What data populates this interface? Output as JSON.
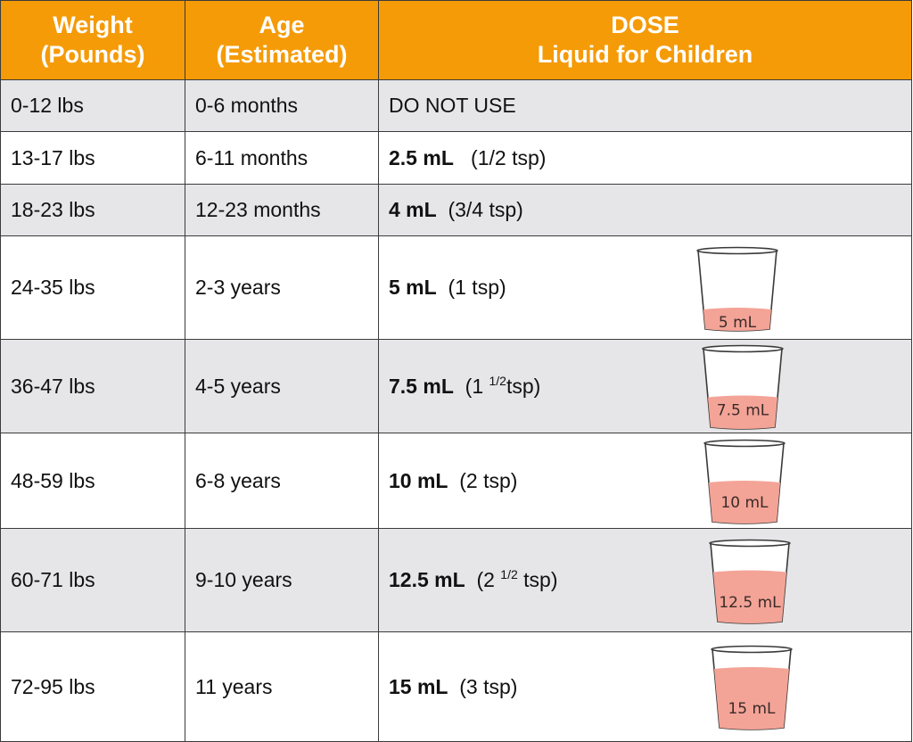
{
  "colors": {
    "header_bg": "#f59b07",
    "header_text": "#ffffff",
    "shaded_row": "#e6e6e8",
    "plain_row": "#ffffff",
    "liquid": "#f3a497"
  },
  "header": {
    "weight": {
      "line1": "Weight",
      "line2": "(Pounds)"
    },
    "age": {
      "line1": "Age",
      "line2": "(Estimated)"
    },
    "dose": {
      "line1": "DOSE",
      "line2": "Liquid for Children"
    }
  },
  "rows": [
    {
      "weight": "0-12 lbs",
      "age": "0-6 months",
      "dose_text": "DO NOT USE"
    },
    {
      "weight": "13-17 lbs",
      "age": "6-11 months",
      "dose_ml": "2.5 mL",
      "tsp_open": "(1/2 tsp)"
    },
    {
      "weight": "18-23 lbs",
      "age": "12-23 months",
      "dose_ml": "4 mL",
      "tsp_open": "(3/4 tsp)"
    },
    {
      "weight": "24-35 lbs",
      "age": "2-3 years",
      "dose_ml": "5 mL",
      "tsp_open": "(1 tsp)",
      "cup_label": "5 mL",
      "fill": 0.25
    },
    {
      "weight": "36-47 lbs",
      "age": "4-5 years",
      "dose_ml": "7.5 mL",
      "tsp_open": "(1",
      "tsp_frac": "1/2",
      "tsp_close": "tsp)",
      "cup_label": "7.5 mL",
      "fill": 0.38
    },
    {
      "weight": "48-59 lbs",
      "age": "6-8 years",
      "dose_ml": "10 mL",
      "tsp_open": "(2 tsp)",
      "cup_label": "10 mL",
      "fill": 0.5
    },
    {
      "weight": "60-71 lbs",
      "age": "9-10 years",
      "dose_ml": "12.5 mL",
      "tsp_open": "(2",
      "tsp_frac": "1/2",
      "tsp_close": " tsp)",
      "cup_label": "12.5 mL",
      "fill": 0.63
    },
    {
      "weight": "72-95 lbs",
      "age": "11 years",
      "dose_ml": "15 mL",
      "tsp_open": "(3 tsp)",
      "cup_label": "15 mL",
      "fill": 0.75
    }
  ]
}
